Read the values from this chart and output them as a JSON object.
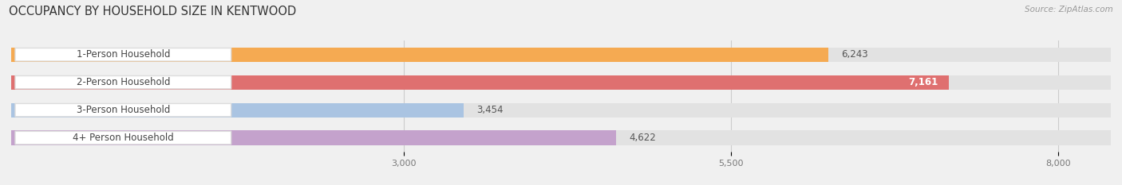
{
  "title": "OCCUPANCY BY HOUSEHOLD SIZE IN KENTWOOD",
  "source": "Source: ZipAtlas.com",
  "categories": [
    "1-Person Household",
    "2-Person Household",
    "3-Person Household",
    "4+ Person Household"
  ],
  "values": [
    6243,
    7161,
    3454,
    4622
  ],
  "bar_colors": [
    "#f5aa52",
    "#df7070",
    "#aac4e2",
    "#c4a2cc"
  ],
  "background_color": "#f0f0f0",
  "bar_bg_color": "#e2e2e2",
  "xlim": [
    0,
    8400
  ],
  "xmin": 0,
  "xticks": [
    3000,
    5500,
    8000
  ],
  "tick_labels": [
    "3,000",
    "5,500",
    "8,000"
  ],
  "title_fontsize": 10.5,
  "label_fontsize": 8.5,
  "value_fontsize": 8.5,
  "bar_height": 0.52,
  "figsize": [
    14.06,
    2.33
  ],
  "dpi": 100
}
